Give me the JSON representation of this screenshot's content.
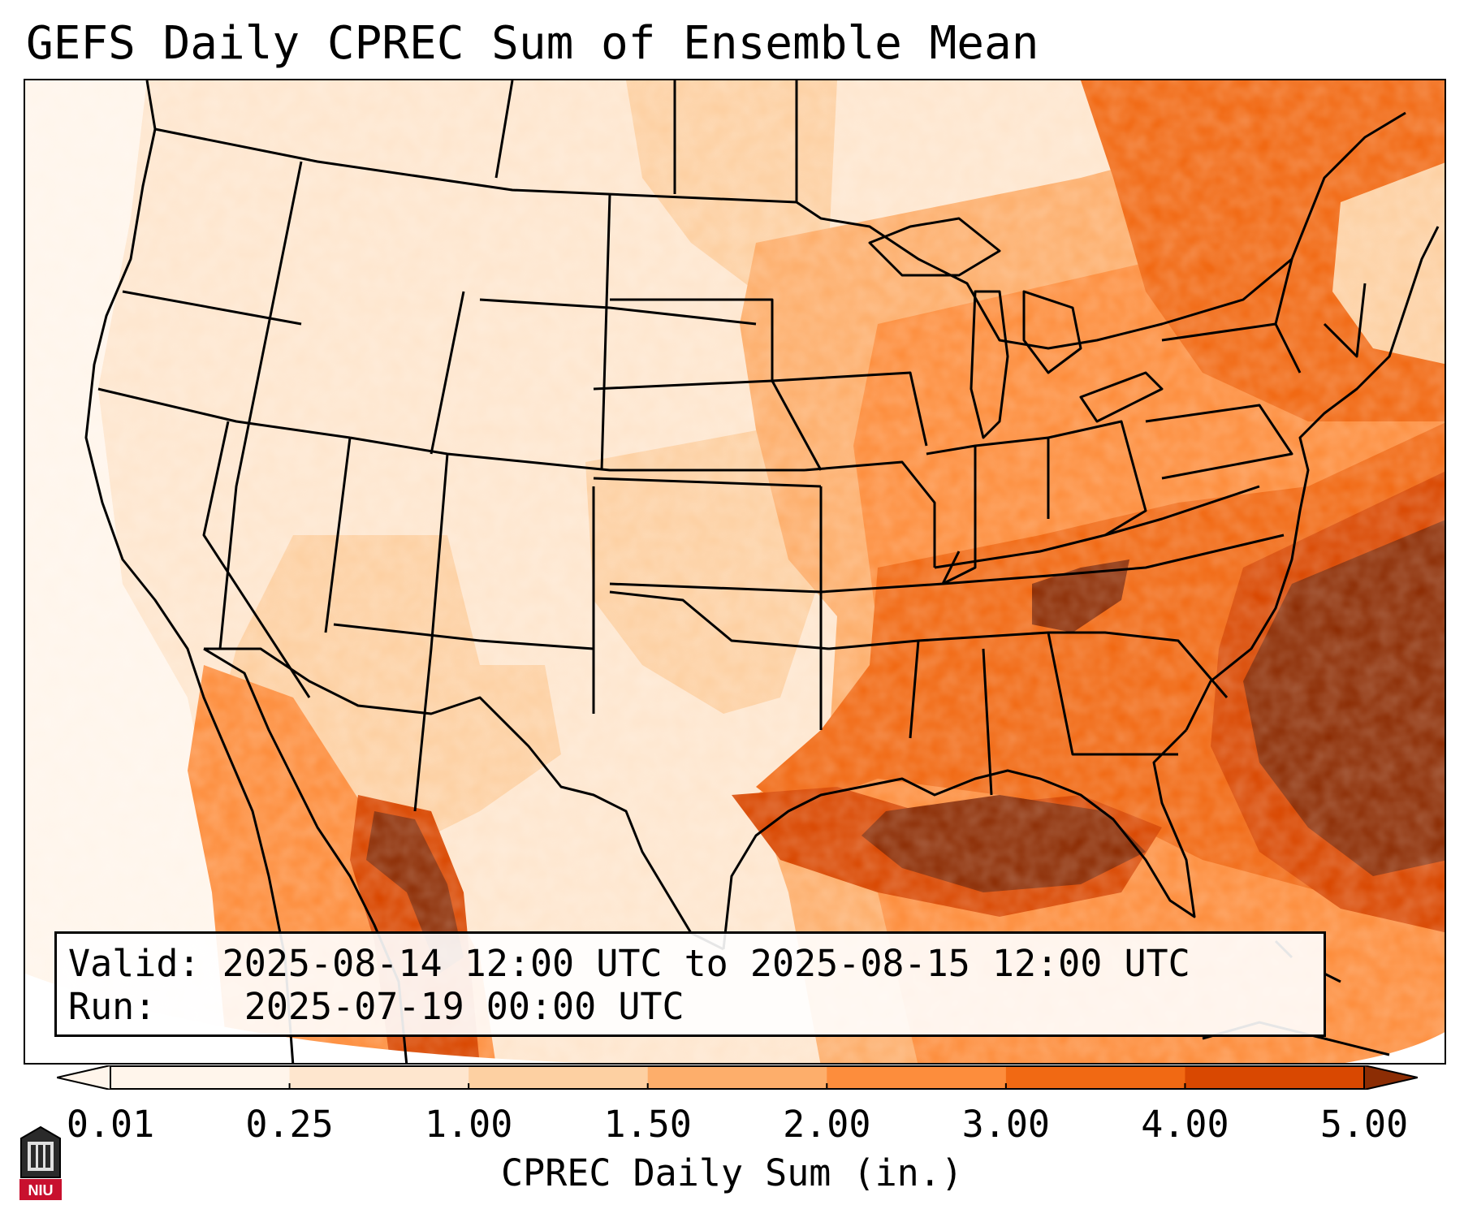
{
  "title": "GEFS Daily CPREC Sum of Ensemble Mean",
  "info": {
    "valid_label": "Valid:",
    "valid_value": "2025-08-14 12:00 UTC to 2025-08-15 12:00 UTC",
    "run_label": "Run:",
    "run_value": "2025-07-19 00:00 UTC"
  },
  "colorbar": {
    "label": "CPREC Daily Sum (in.)",
    "ticks": [
      "0.01",
      "0.25",
      "1.00",
      "1.50",
      "2.00",
      "3.00",
      "4.00",
      "5.00"
    ],
    "colors": [
      "#fff5eb",
      "#fee6ce",
      "#fdd0a2",
      "#fdae6b",
      "#fd8d3c",
      "#f16913",
      "#d94801",
      "#8c2d04"
    ],
    "under_color": "#fff5eb",
    "over_color": "#8c2d04"
  },
  "logo": {
    "text": "NIU",
    "color": "#c8102e"
  }
}
